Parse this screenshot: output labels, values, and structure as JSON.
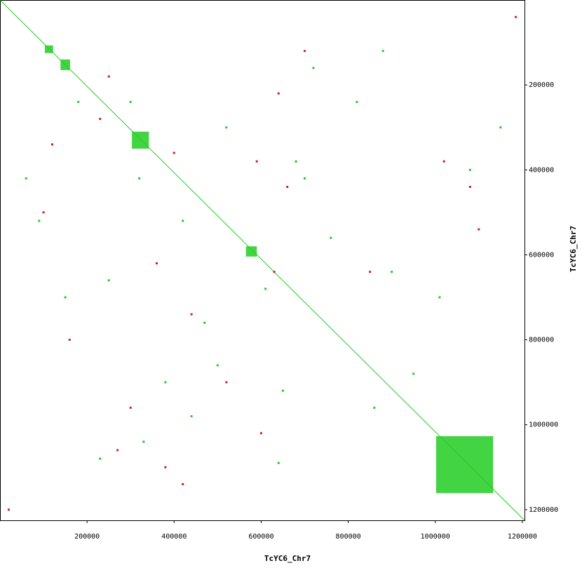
{
  "chart_data": {
    "type": "dotplot",
    "x_label": "TcYC6_Chr7",
    "y_label": "TcYC6_Chr7",
    "xlim": [
      0,
      1205000
    ],
    "ylim": [
      0,
      1225000
    ],
    "xticks": [
      200000,
      400000,
      600000,
      800000,
      1000000,
      1200000
    ],
    "yticks": [
      200000,
      400000,
      600000,
      800000,
      1000000,
      1200000
    ],
    "forward_color": "#22cc22",
    "reverse_color": "#cc2222",
    "diagonal": {
      "x": [
        0,
        1205000
      ],
      "y": [
        0,
        1225000
      ]
    },
    "blocks": [
      {
        "x": [
          103000,
          122000
        ],
        "y": [
          107000,
          125000
        ]
      },
      {
        "x": [
          139000,
          161000
        ],
        "y": [
          140000,
          165000
        ]
      },
      {
        "x": [
          303000,
          342000
        ],
        "y": [
          310000,
          350000
        ]
      },
      {
        "x": [
          565000,
          590000
        ],
        "y": [
          580000,
          604000
        ]
      },
      {
        "x": [
          1002000,
          1133000
        ],
        "y": [
          1027000,
          1161000
        ]
      }
    ],
    "forward_hits": {
      "x": [
        60000,
        90000,
        180000,
        250000,
        320000,
        380000,
        420000,
        470000,
        520000,
        610000,
        650000,
        700000,
        760000,
        820000,
        900000,
        950000,
        1080000,
        1150000,
        230000,
        330000,
        440000,
        640000,
        720000,
        880000,
        1010000,
        150000,
        300000,
        500000,
        680000,
        860000
      ],
      "y": [
        420000,
        520000,
        240000,
        660000,
        420000,
        900000,
        520000,
        760000,
        300000,
        680000,
        920000,
        420000,
        560000,
        240000,
        640000,
        880000,
        400000,
        300000,
        1080000,
        1040000,
        980000,
        1090000,
        160000,
        120000,
        700000,
        700000,
        240000,
        860000,
        380000,
        960000
      ]
    },
    "reverse_hits": {
      "x": [
        20000,
        1185000,
        100000,
        230000,
        360000,
        400000,
        440000,
        590000,
        630000,
        660000,
        1020000,
        1080000,
        270000,
        380000,
        300000,
        640000,
        700000,
        850000,
        160000,
        520000,
        420000,
        120000,
        250000,
        600000,
        1100000
      ],
      "y": [
        1200000,
        40000,
        500000,
        280000,
        620000,
        360000,
        740000,
        380000,
        640000,
        440000,
        380000,
        440000,
        1060000,
        1100000,
        960000,
        220000,
        120000,
        640000,
        800000,
        900000,
        1140000,
        340000,
        180000,
        1020000,
        540000
      ]
    }
  }
}
